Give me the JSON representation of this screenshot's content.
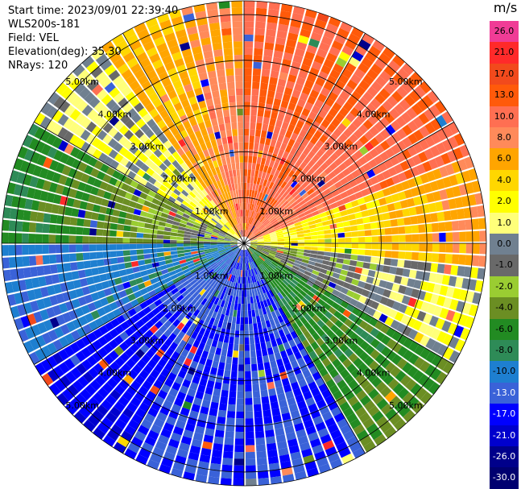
{
  "info": {
    "start_time": "Start time: 2023/09/01 22:39:40",
    "site": "WLS200s-181",
    "field": "Field: VEL",
    "elevation": "Elevation(deg): 35.30",
    "nrays": "NRays: 120"
  },
  "chart_data": {
    "type": "ppi_polar_heatmap",
    "field": "VEL",
    "units": "m/s",
    "n_rays": 120,
    "max_range_km": 5.3,
    "range_rings": [
      1.0,
      2.0,
      3.0,
      4.0,
      5.0
    ],
    "ring_labels": [
      "1.00km",
      "2.00km",
      "3.00km",
      "4.00km",
      "5.00km"
    ],
    "spoke_step_deg": 30,
    "colorbar": {
      "title": "m/s",
      "bins": [
        {
          "label": "26.0",
          "color": "#f03c96"
        },
        {
          "label": "21.0",
          "color": "#ff2a2a"
        },
        {
          "label": "17.0",
          "color": "#f24a1c"
        },
        {
          "label": "13.0",
          "color": "#ff5a0a"
        },
        {
          "label": "10.0",
          "color": "#ff6f52"
        },
        {
          "label": "8.0",
          "color": "#ff8a5a"
        },
        {
          "label": "6.0",
          "color": "#ffa500"
        },
        {
          "label": "4.0",
          "color": "#ffd700"
        },
        {
          "label": "2.0",
          "color": "#ffff00"
        },
        {
          "label": "1.0",
          "color": "#ffff7a"
        },
        {
          "label": "0.0",
          "color": "#708090"
        },
        {
          "label": "-1.0",
          "color": "#696969"
        },
        {
          "label": "-2.0",
          "color": "#9acd32"
        },
        {
          "label": "-4.0",
          "color": "#6b8e23"
        },
        {
          "label": "-6.0",
          "color": "#228b22"
        },
        {
          "label": "-8.0",
          "color": "#2e8b57"
        },
        {
          "label": "-10.0",
          "color": "#1e7fd0"
        },
        {
          "label": "-13.0",
          "color": "#3a62d8"
        },
        {
          "label": "-17.0",
          "color": "#0000ff"
        },
        {
          "label": "-21.0",
          "color": "#0000cd"
        },
        {
          "label": "-26.0",
          "color": "#00008b"
        },
        {
          "label": "-30.0",
          "color": "#000070"
        }
      ]
    },
    "sectors": [
      {
        "az_from": 0,
        "az_to": 40,
        "inner_value": 13.0,
        "outer_value": 13.0
      },
      {
        "az_from": 40,
        "az_to": 70,
        "inner_value": 10.0,
        "outer_value": 13.0
      },
      {
        "az_from": 70,
        "az_to": 95,
        "inner_value": 2.0,
        "outer_value": 8.0
      },
      {
        "az_from": 95,
        "az_to": 120,
        "inner_value": -2.0,
        "outer_value": 2.0
      },
      {
        "az_from": 120,
        "az_to": 150,
        "inner_value": -6.0,
        "outer_value": -4.0
      },
      {
        "az_from": 150,
        "az_to": 210,
        "inner_value": -13.0,
        "outer_value": -13.0
      },
      {
        "az_from": 210,
        "az_to": 240,
        "inner_value": -10.0,
        "outer_value": -17.0
      },
      {
        "az_from": 240,
        "az_to": 270,
        "inner_value": -8.0,
        "outer_value": -10.0
      },
      {
        "az_from": 270,
        "az_to": 300,
        "inner_value": 0.0,
        "outer_value": -6.0
      },
      {
        "az_from": 300,
        "az_to": 325,
        "inner_value": 2.0,
        "outer_value": 1.0
      },
      {
        "az_from": 325,
        "az_to": 345,
        "inner_value": 8.0,
        "outer_value": 6.0
      },
      {
        "az_from": 345,
        "az_to": 360,
        "inner_value": 10.0,
        "outer_value": 8.0
      }
    ]
  }
}
